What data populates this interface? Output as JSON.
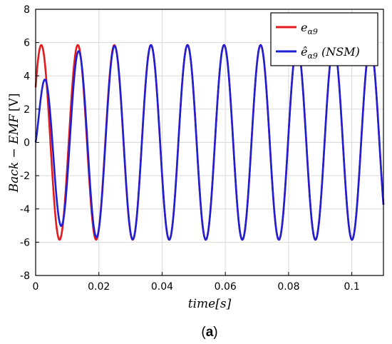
{
  "caption": {
    "open": "(",
    "letter": "a",
    "close": ")"
  },
  "chart_data": {
    "type": "line",
    "xlabel": "time[s]",
    "ylabel_var": "Back − EMF",
    "ylabel_unit": "[V]",
    "xlim": [
      0,
      0.11
    ],
    "ylim": [
      -8,
      8
    ],
    "x_ticks": [
      0,
      0.02,
      0.04,
      0.06,
      0.08,
      0.1
    ],
    "x_tick_labels": [
      "0",
      "0.02",
      "0.04",
      "0.06",
      "0.08",
      "0.1"
    ],
    "y_ticks": [
      -8,
      -6,
      -4,
      -2,
      0,
      2,
      4,
      6,
      8
    ],
    "y_tick_labels": [
      "-8",
      "-6",
      "-4",
      "-2",
      "0",
      "2",
      "4",
      "6",
      "8"
    ],
    "grid": true,
    "legend_position": "top-right",
    "frequency_hz": 86.5,
    "amplitude": 5.85,
    "series": [
      {
        "name_base": "e",
        "name_sub": "α9",
        "color": "#e41a1c",
        "initial_value": 3.3,
        "phase_rad": 0.6,
        "transient": "none"
      },
      {
        "name_base": "ê",
        "name_sub": "α9",
        "name_suffix": " (NSM)",
        "color": "#1f1fd6",
        "initial_value": 0,
        "observer_start_peak": 2.0,
        "transient": "converges within first two periods"
      }
    ]
  }
}
